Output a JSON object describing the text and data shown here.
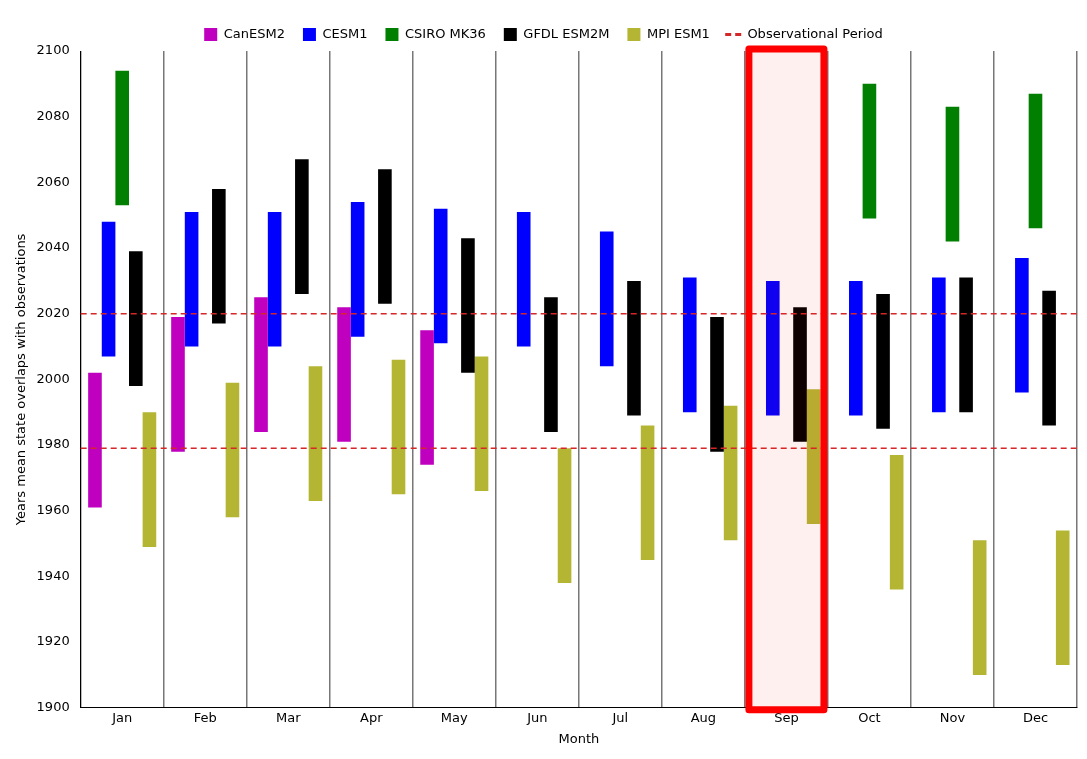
{
  "chart_data": {
    "type": "bar",
    "xlabel": "Month",
    "ylabel": "Years mean state overlaps with observations",
    "categories": [
      "Jan",
      "Feb",
      "Mar",
      "Apr",
      "May",
      "Jun",
      "Jul",
      "Aug",
      "Sep",
      "Oct",
      "Nov",
      "Dec"
    ],
    "series": [
      {
        "name": "CanESM2",
        "color": "#bf00bf",
        "base": [
          1961,
          1978,
          1984,
          1981,
          1974,
          null,
          null,
          null,
          null,
          null,
          null,
          null
        ],
        "values": [
          41,
          41,
          41,
          41,
          41,
          null,
          null,
          null,
          null,
          null,
          null,
          null
        ]
      },
      {
        "name": "CESM1",
        "color": "#0000ff",
        "base": [
          2007,
          2010,
          2010,
          2013,
          2011,
          2010,
          2004,
          1990,
          1989,
          1989,
          1990,
          1996
        ],
        "values": [
          41,
          41,
          41,
          41,
          41,
          41,
          41,
          41,
          41,
          41,
          41,
          41
        ]
      },
      {
        "name": "CSIRO MK36",
        "color": "#007f00",
        "base": [
          2053,
          null,
          null,
          null,
          null,
          null,
          null,
          null,
          null,
          2049,
          2042,
          2046
        ],
        "values": [
          41,
          null,
          null,
          null,
          null,
          null,
          null,
          null,
          null,
          41,
          41,
          41
        ]
      },
      {
        "name": "GFDL ESM2M",
        "color": "#000000",
        "base": [
          1998,
          2017,
          2026,
          2023,
          2002,
          1984,
          1989,
          1978,
          1981,
          1985,
          1990,
          1986
        ],
        "values": [
          41,
          41,
          41,
          41,
          41,
          41,
          41,
          41,
          41,
          41,
          41,
          41
        ]
      },
      {
        "name": "MPI ESM1",
        "color": "#b5b534",
        "base": [
          1949,
          1958,
          1963,
          1965,
          1966,
          1938,
          1945,
          1951,
          1956,
          1936,
          1910,
          1913
        ],
        "values": [
          41,
          41,
          41,
          41,
          41,
          41,
          41,
          41,
          41,
          41,
          41,
          41
        ]
      }
    ],
    "ref_lines": [
      {
        "axis": "y",
        "value": 2020,
        "label": "Observational Period",
        "color": "#d62728",
        "line_style": "dashed"
      },
      {
        "axis": "y",
        "value": 1979,
        "color": "#d62728",
        "line_style": "dashed"
      }
    ],
    "bands": [
      {
        "axis": "x",
        "from": "Sep",
        "to": "Sep",
        "color": "#ff0000"
      }
    ],
    "ylim": [
      1900,
      2100
    ],
    "yticks": [
      1900,
      1920,
      1940,
      1960,
      1980,
      2000,
      2020,
      2040,
      2060,
      2080,
      2100
    ],
    "grid": "x",
    "legend": "top"
  }
}
